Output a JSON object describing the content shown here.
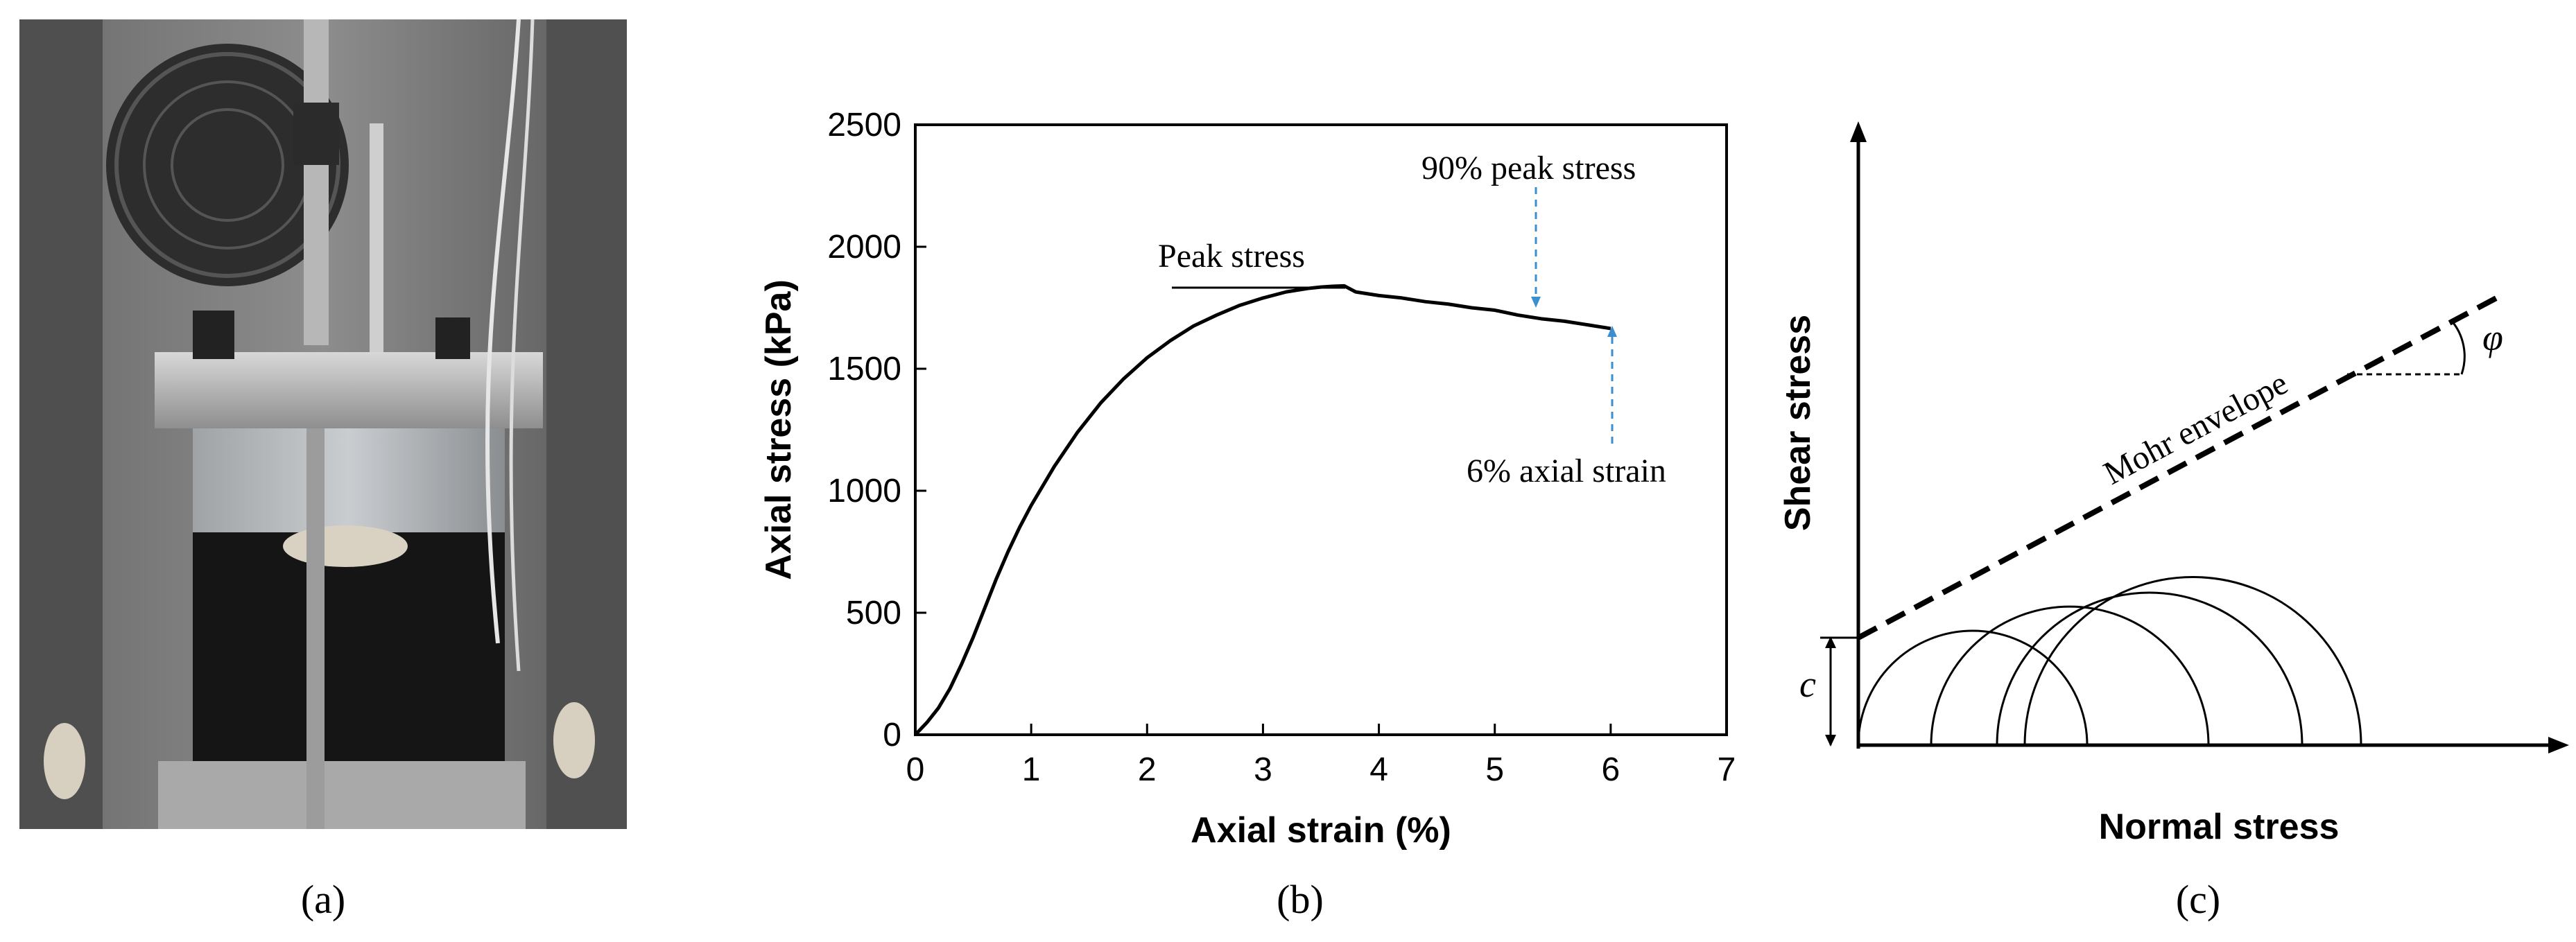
{
  "captions": {
    "a": "(a)",
    "b": "(b)",
    "c": "(c)"
  },
  "photo": {
    "description_icon": "triaxial-test-apparatus-photo"
  },
  "chart_data": [
    {
      "type": "line",
      "xlabel": "Axial strain (%)",
      "ylabel": "Axial stress (kPa)",
      "xlim": [
        0,
        7
      ],
      "ylim": [
        0,
        2500
      ],
      "xticks": [
        "0",
        "1",
        "2",
        "3",
        "4",
        "5",
        "6",
        "7"
      ],
      "yticks": [
        "0",
        "500",
        "1000",
        "1500",
        "2000",
        "2500"
      ],
      "grid": false,
      "series": [
        {
          "x": [
            0,
            0.1,
            0.2,
            0.3,
            0.4,
            0.5,
            0.6,
            0.7,
            0.8,
            0.9,
            1.0,
            1.2,
            1.4,
            1.6,
            1.8,
            2.0,
            2.2,
            2.4,
            2.6,
            2.8,
            3.0,
            3.2,
            3.4,
            3.5,
            3.6,
            3.7,
            3.8,
            4.0,
            4.2,
            4.4,
            4.6,
            4.8,
            5.0,
            5.2,
            5.4,
            5.6,
            5.8,
            6.0
          ],
          "y": [
            0,
            50,
            110,
            190,
            290,
            400,
            520,
            640,
            750,
            850,
            940,
            1100,
            1240,
            1360,
            1460,
            1545,
            1615,
            1675,
            1720,
            1760,
            1790,
            1815,
            1830,
            1835,
            1838,
            1840,
            1815,
            1800,
            1790,
            1775,
            1765,
            1750,
            1740,
            1720,
            1705,
            1695,
            1680,
            1665
          ]
        }
      ],
      "annotations": {
        "peak": "Peak stress",
        "ninety": "90% peak stress",
        "strain6": "6% axial strain"
      },
      "colors": {
        "line": "#000000",
        "arrow": "#3a8fd0"
      }
    },
    {
      "type": "diagram",
      "xlabel": "Normal stress",
      "ylabel": "Shear stress",
      "labels": {
        "envelope": "Mohr envelope",
        "cohesion": "c",
        "phi": "φ"
      }
    }
  ]
}
